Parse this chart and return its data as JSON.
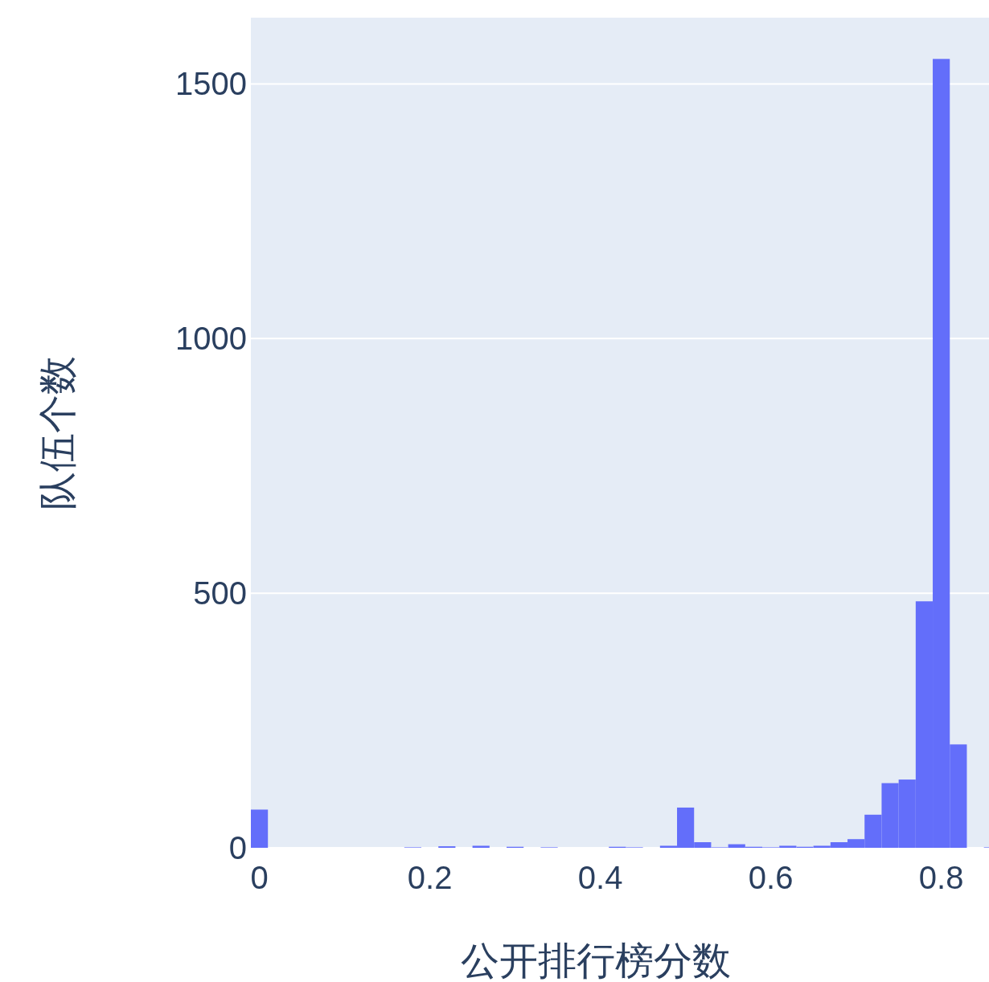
{
  "chart_data": {
    "type": "histogram",
    "xlabel": "公开排行榜分数",
    "ylabel": "队伍个数",
    "bins": [
      -0.01,
      0.01,
      0.03,
      0.05,
      0.07,
      0.09,
      0.11,
      0.13,
      0.15,
      0.17,
      0.19,
      0.21,
      0.23,
      0.25,
      0.27,
      0.29,
      0.31,
      0.33,
      0.35,
      0.37,
      0.39,
      0.41,
      0.43,
      0.45,
      0.47,
      0.49,
      0.51,
      0.53,
      0.55,
      0.57,
      0.59,
      0.61,
      0.63,
      0.65,
      0.67,
      0.69,
      0.71,
      0.73,
      0.75,
      0.77,
      0.79,
      0.81,
      0.83,
      0.85,
      0.87
    ],
    "values": [
      75,
      0,
      0,
      0,
      0,
      0,
      0,
      0,
      0,
      1,
      0,
      3,
      0,
      4,
      0,
      2,
      0,
      1,
      0,
      0,
      0,
      2,
      1,
      0,
      4,
      79,
      11,
      1,
      7,
      2,
      1,
      4,
      2,
      4,
      11,
      17,
      65,
      127,
      134,
      484,
      1549,
      203,
      0,
      1
    ],
    "color": "#636efa",
    "xlim": [
      -0.01,
      0.856
    ],
    "xticks": [
      0,
      0.2,
      0.4,
      0.6,
      0.8
    ],
    "ylim": [
      0,
      1630
    ],
    "yticks": [
      0,
      500,
      1000,
      1500
    ],
    "grid": "y"
  }
}
